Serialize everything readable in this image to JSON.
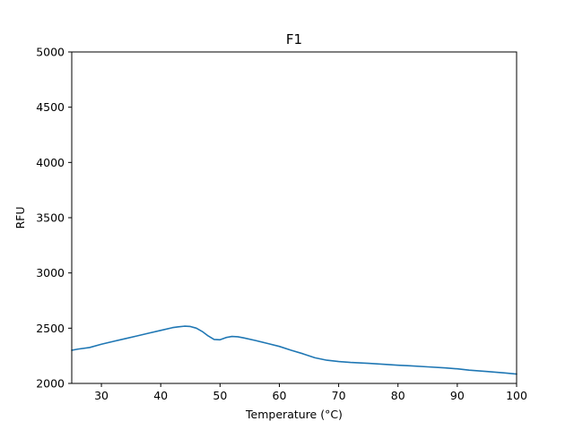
{
  "chart_data": {
    "type": "line",
    "title": "F1",
    "xlabel": "Temperature (°C)",
    "ylabel": "RFU",
    "xlim": [
      25,
      100
    ],
    "ylim": [
      2000,
      5000
    ],
    "xticks": [
      30,
      40,
      50,
      60,
      70,
      80,
      90,
      100
    ],
    "yticks": [
      2000,
      2500,
      3000,
      3500,
      4000,
      4500,
      5000
    ],
    "grid": false,
    "line_color": "#1f77b4",
    "series": [
      {
        "x": [
          25,
          26,
          28,
          30,
          32,
          34,
          36,
          38,
          40,
          42,
          43,
          44,
          45,
          46,
          47,
          48,
          49,
          50,
          51,
          52,
          53,
          54,
          56,
          58,
          60,
          62,
          64,
          66,
          68,
          70,
          72,
          75,
          78,
          80,
          82,
          85,
          88,
          90,
          92,
          95,
          98,
          100
        ],
        "y": [
          2300,
          2310,
          2325,
          2355,
          2380,
          2405,
          2430,
          2455,
          2480,
          2505,
          2512,
          2518,
          2515,
          2500,
          2470,
          2430,
          2398,
          2395,
          2415,
          2425,
          2422,
          2412,
          2388,
          2362,
          2335,
          2300,
          2268,
          2232,
          2210,
          2198,
          2190,
          2182,
          2172,
          2165,
          2160,
          2150,
          2140,
          2132,
          2120,
          2108,
          2095,
          2085
        ]
      }
    ]
  }
}
